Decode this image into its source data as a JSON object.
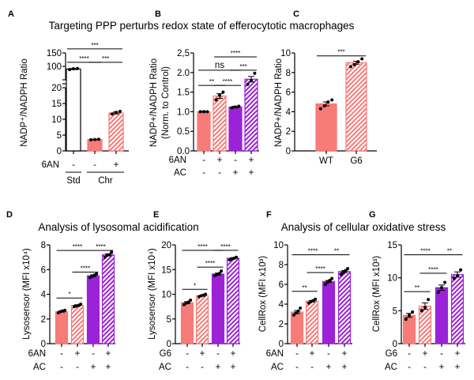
{
  "colors": {
    "salmon": "#f77b78",
    "purple": "#9b22d6",
    "axis": "#000000"
  },
  "titles": [
    "Targeting PPP perturbs redox state of efferocytotic macrophages",
    "Analysis of lysosomal acidification",
    "Analysis of cellular oxidative stress"
  ],
  "chart_data": [
    {
      "panel": "A",
      "type": "bar",
      "ylabel": "NADP⁺/NADPH Ratio",
      "yticks": [
        "0",
        "5",
        "10",
        "15",
        "20",
        "100",
        "150"
      ],
      "ytick_values": [
        0,
        5,
        10,
        15,
        20,
        100,
        150
      ],
      "axis_break": [
        20,
        53
      ],
      "conditions": [
        {
          "label": "6AN",
          "values": [
            "-",
            "-",
            "+"
          ]
        }
      ],
      "groups": [
        {
          "label": "Std",
          "bars": [
            0,
            0
          ]
        },
        {
          "label": "Chr",
          "bars": [
            1,
            2
          ]
        }
      ],
      "bars": [
        {
          "value": 90,
          "sem": 2,
          "fill": "white",
          "points": [
            88,
            91,
            92
          ]
        },
        {
          "value": 3.6,
          "sem": 0.1,
          "fill": "salmon",
          "points": [
            3.5,
            3.6,
            3.7
          ]
        },
        {
          "value": 12,
          "sem": 0.3,
          "fill": "salmon-hatch",
          "points": [
            11.7,
            12.2,
            12.5
          ]
        }
      ],
      "brackets": [
        {
          "from": 0,
          "to": 1,
          "label": "****",
          "y": 115
        },
        {
          "from": 1,
          "to": 2,
          "label": "***",
          "y": 115
        },
        {
          "from": 0,
          "to": 2,
          "label": "***",
          "y": 165
        }
      ]
    },
    {
      "panel": "B",
      "type": "bar",
      "ylabel": "NADP+/NADPH Ratio",
      "ylabel2": "(Norm. to Control)",
      "ylim": [
        0,
        2.5
      ],
      "yticks": [
        "0.0",
        "0.5",
        "1.0",
        "1.5",
        "2.0",
        "2,5"
      ],
      "ytick_values": [
        0,
        0.5,
        1,
        1.5,
        2,
        2.5
      ],
      "conditions": [
        {
          "label": "6AN",
          "values": [
            "-",
            "+",
            "-",
            "+"
          ]
        },
        {
          "label": "AC",
          "values": [
            "-",
            "-",
            "+",
            "+"
          ]
        }
      ],
      "bars": [
        {
          "value": 1.0,
          "sem": 0.01,
          "fill": "salmon",
          "points": [
            1.0,
            1.0,
            1.0
          ]
        },
        {
          "value": 1.4,
          "sem": 0.06,
          "fill": "salmon-hatch",
          "points": [
            1.3,
            1.42,
            1.5
          ]
        },
        {
          "value": 1.12,
          "sem": 0.02,
          "fill": "purple",
          "points": [
            1.1,
            1.12,
            1.14
          ]
        },
        {
          "value": 1.83,
          "sem": 0.07,
          "fill": "purple-hatch",
          "points": [
            1.7,
            1.8,
            1.98
          ]
        }
      ],
      "brackets": [
        {
          "from": 0,
          "to": 1,
          "label": "**",
          "y": 1.67
        },
        {
          "from": 1,
          "to": 2,
          "label": "****",
          "y": 1.67
        },
        {
          "from": 0,
          "to": 2,
          "label": "ns",
          "y": 2.06
        },
        {
          "from": 2,
          "to": 3,
          "label": "***",
          "y": 2.06
        },
        {
          "from": 1,
          "to": 3,
          "label": "****",
          "y": 2.4
        }
      ]
    },
    {
      "panel": "C",
      "type": "bar",
      "ylabel": "NADP+/NADPH Ratio",
      "ylim": [
        0,
        10
      ],
      "yticks": [
        "0",
        "2",
        "4",
        "6",
        "8",
        "10"
      ],
      "ytick_values": [
        0,
        2,
        4,
        6,
        8,
        10
      ],
      "categories": [
        "WT",
        "G6"
      ],
      "bars": [
        {
          "value": 4.8,
          "sem": 0.2,
          "fill": "salmon",
          "points": [
            4.3,
            4.6,
            5.0,
            5.2
          ]
        },
        {
          "value": 9.0,
          "sem": 0.15,
          "fill": "salmon-hatch",
          "points": [
            8.6,
            8.8,
            9.1,
            9.4
          ]
        }
      ],
      "brackets": [
        {
          "from": 0,
          "to": 1,
          "label": "***",
          "y": 9.7
        }
      ]
    },
    {
      "panel": "D",
      "type": "bar",
      "ylabel": "Lysosensor  (MFI x10⁴)",
      "ylim": [
        0,
        8
      ],
      "yticks": [
        "0",
        "2",
        "4",
        "6",
        "8"
      ],
      "ytick_values": [
        0,
        2,
        4,
        6,
        8
      ],
      "conditions": [
        {
          "label": "6AN",
          "values": [
            "-",
            "+",
            "-",
            "+"
          ]
        },
        {
          "label": "AC",
          "values": [
            "-",
            "-",
            "+",
            "+"
          ]
        }
      ],
      "bars": [
        {
          "value": 2.6,
          "sem": 0.05,
          "fill": "salmon",
          "points": [
            2.5,
            2.6,
            2.65,
            2.7
          ]
        },
        {
          "value": 3.1,
          "sem": 0.05,
          "fill": "salmon-hatch",
          "points": [
            3.0,
            3.05,
            3.1,
            3.2
          ]
        },
        {
          "value": 5.5,
          "sem": 0.07,
          "fill": "purple",
          "points": [
            5.35,
            5.45,
            5.55,
            5.65
          ]
        },
        {
          "value": 7.2,
          "sem": 0.08,
          "fill": "purple-hatch",
          "points": [
            7.0,
            7.15,
            7.2,
            7.4
          ]
        }
      ],
      "brackets": [
        {
          "from": 0,
          "to": 1,
          "label": "*",
          "y": 3.7
        },
        {
          "from": 1,
          "to": 2,
          "label": "****",
          "y": 5.8
        },
        {
          "from": 0,
          "to": 2,
          "label": "****",
          "y": 7.55
        },
        {
          "from": 2,
          "to": 3,
          "label": "****",
          "y": 7.55
        }
      ]
    },
    {
      "panel": "E",
      "type": "bar",
      "ylabel": "Lysosensor  (MFI x10⁴)",
      "ylim": [
        0,
        20
      ],
      "yticks": [
        "0",
        "5",
        "10",
        "15",
        "20"
      ],
      "ytick_values": [
        0,
        5,
        10,
        15,
        20
      ],
      "conditions": [
        {
          "label": "G6",
          "values": [
            "-",
            "+",
            "-",
            "+"
          ]
        },
        {
          "label": "AC",
          "values": [
            "-",
            "-",
            "+",
            "+"
          ]
        }
      ],
      "bars": [
        {
          "value": 8.3,
          "sem": 0.2,
          "fill": "salmon",
          "points": [
            7.9,
            8.2,
            8.4,
            8.8
          ]
        },
        {
          "value": 9.7,
          "sem": 0.1,
          "fill": "salmon-hatch",
          "points": [
            9.5,
            9.7,
            9.8,
            10.0
          ]
        },
        {
          "value": 14.1,
          "sem": 0.2,
          "fill": "purple",
          "points": [
            13.8,
            14.0,
            14.2,
            14.7
          ]
        },
        {
          "value": 17.3,
          "sem": 0.1,
          "fill": "purple-hatch",
          "points": [
            17.0,
            17.2,
            17.3,
            17.5
          ]
        }
      ],
      "brackets": [
        {
          "from": 0,
          "to": 1,
          "label": "*",
          "y": 11
        },
        {
          "from": 1,
          "to": 2,
          "label": "****",
          "y": 15.5
        },
        {
          "from": 0,
          "to": 2,
          "label": "****",
          "y": 18.9
        },
        {
          "from": 2,
          "to": 3,
          "label": "****",
          "y": 18.9
        }
      ]
    },
    {
      "panel": "F",
      "type": "bar",
      "ylabel": "CellRox (MFI x10³)",
      "ylim": [
        0,
        10
      ],
      "yticks": [
        "0",
        "2",
        "4",
        "6",
        "8",
        "10"
      ],
      "ytick_values": [
        0,
        2,
        4,
        6,
        8,
        10
      ],
      "conditions": [
        {
          "label": "6AN",
          "values": [
            "-",
            "+",
            "-",
            "+"
          ]
        },
        {
          "label": "AC",
          "values": [
            "-",
            "-",
            "+",
            "+"
          ]
        }
      ],
      "bars": [
        {
          "value": 3.2,
          "sem": 0.15,
          "fill": "salmon",
          "points": [
            2.9,
            3.1,
            3.3,
            3.6
          ]
        },
        {
          "value": 4.3,
          "sem": 0.08,
          "fill": "salmon-hatch",
          "points": [
            4.1,
            4.25,
            4.35,
            4.5
          ]
        },
        {
          "value": 6.3,
          "sem": 0.1,
          "fill": "purple",
          "points": [
            6.0,
            6.2,
            6.4,
            6.6
          ]
        },
        {
          "value": 7.3,
          "sem": 0.1,
          "fill": "purple-hatch",
          "points": [
            7.0,
            7.2,
            7.4,
            7.6
          ]
        }
      ],
      "brackets": [
        {
          "from": 0,
          "to": 1,
          "label": "**",
          "y": 5.3
        },
        {
          "from": 1,
          "to": 2,
          "label": "****",
          "y": 7.2
        },
        {
          "from": 0,
          "to": 2,
          "label": "****",
          "y": 9.0
        },
        {
          "from": 2,
          "to": 3,
          "label": "**",
          "y": 9.0
        }
      ]
    },
    {
      "panel": "G",
      "type": "bar",
      "ylabel": "CellRox (MFI x10³)",
      "ylim": [
        0,
        15
      ],
      "yticks": [
        "0",
        "5",
        "10",
        "15"
      ],
      "ytick_values": [
        0,
        5,
        10,
        15
      ],
      "conditions": [
        {
          "label": "G6",
          "values": [
            "-",
            "+",
            "-",
            "+"
          ]
        },
        {
          "label": "AC",
          "values": [
            "-",
            "-",
            "+",
            "+"
          ]
        }
      ],
      "bars": [
        {
          "value": 4.3,
          "sem": 0.3,
          "fill": "salmon",
          "points": [
            3.7,
            4.3,
            4.8
          ]
        },
        {
          "value": 5.7,
          "sem": 0.5,
          "fill": "salmon-hatch",
          "points": [
            5.0,
            5.5,
            6.7
          ]
        },
        {
          "value": 8.5,
          "sem": 0.4,
          "fill": "purple",
          "points": [
            7.8,
            8.5,
            9.3
          ]
        },
        {
          "value": 10.5,
          "sem": 0.4,
          "fill": "purple-hatch",
          "points": [
            9.9,
            10.3,
            11.2
          ]
        }
      ],
      "brackets": [
        {
          "from": 0,
          "to": 1,
          "label": "**",
          "y": 7.9
        },
        {
          "from": 1,
          "to": 2,
          "label": "****",
          "y": 10.7
        },
        {
          "from": 0,
          "to": 2,
          "label": "****",
          "y": 13.5
        },
        {
          "from": 2,
          "to": 3,
          "label": "**",
          "y": 13.5
        }
      ]
    }
  ]
}
